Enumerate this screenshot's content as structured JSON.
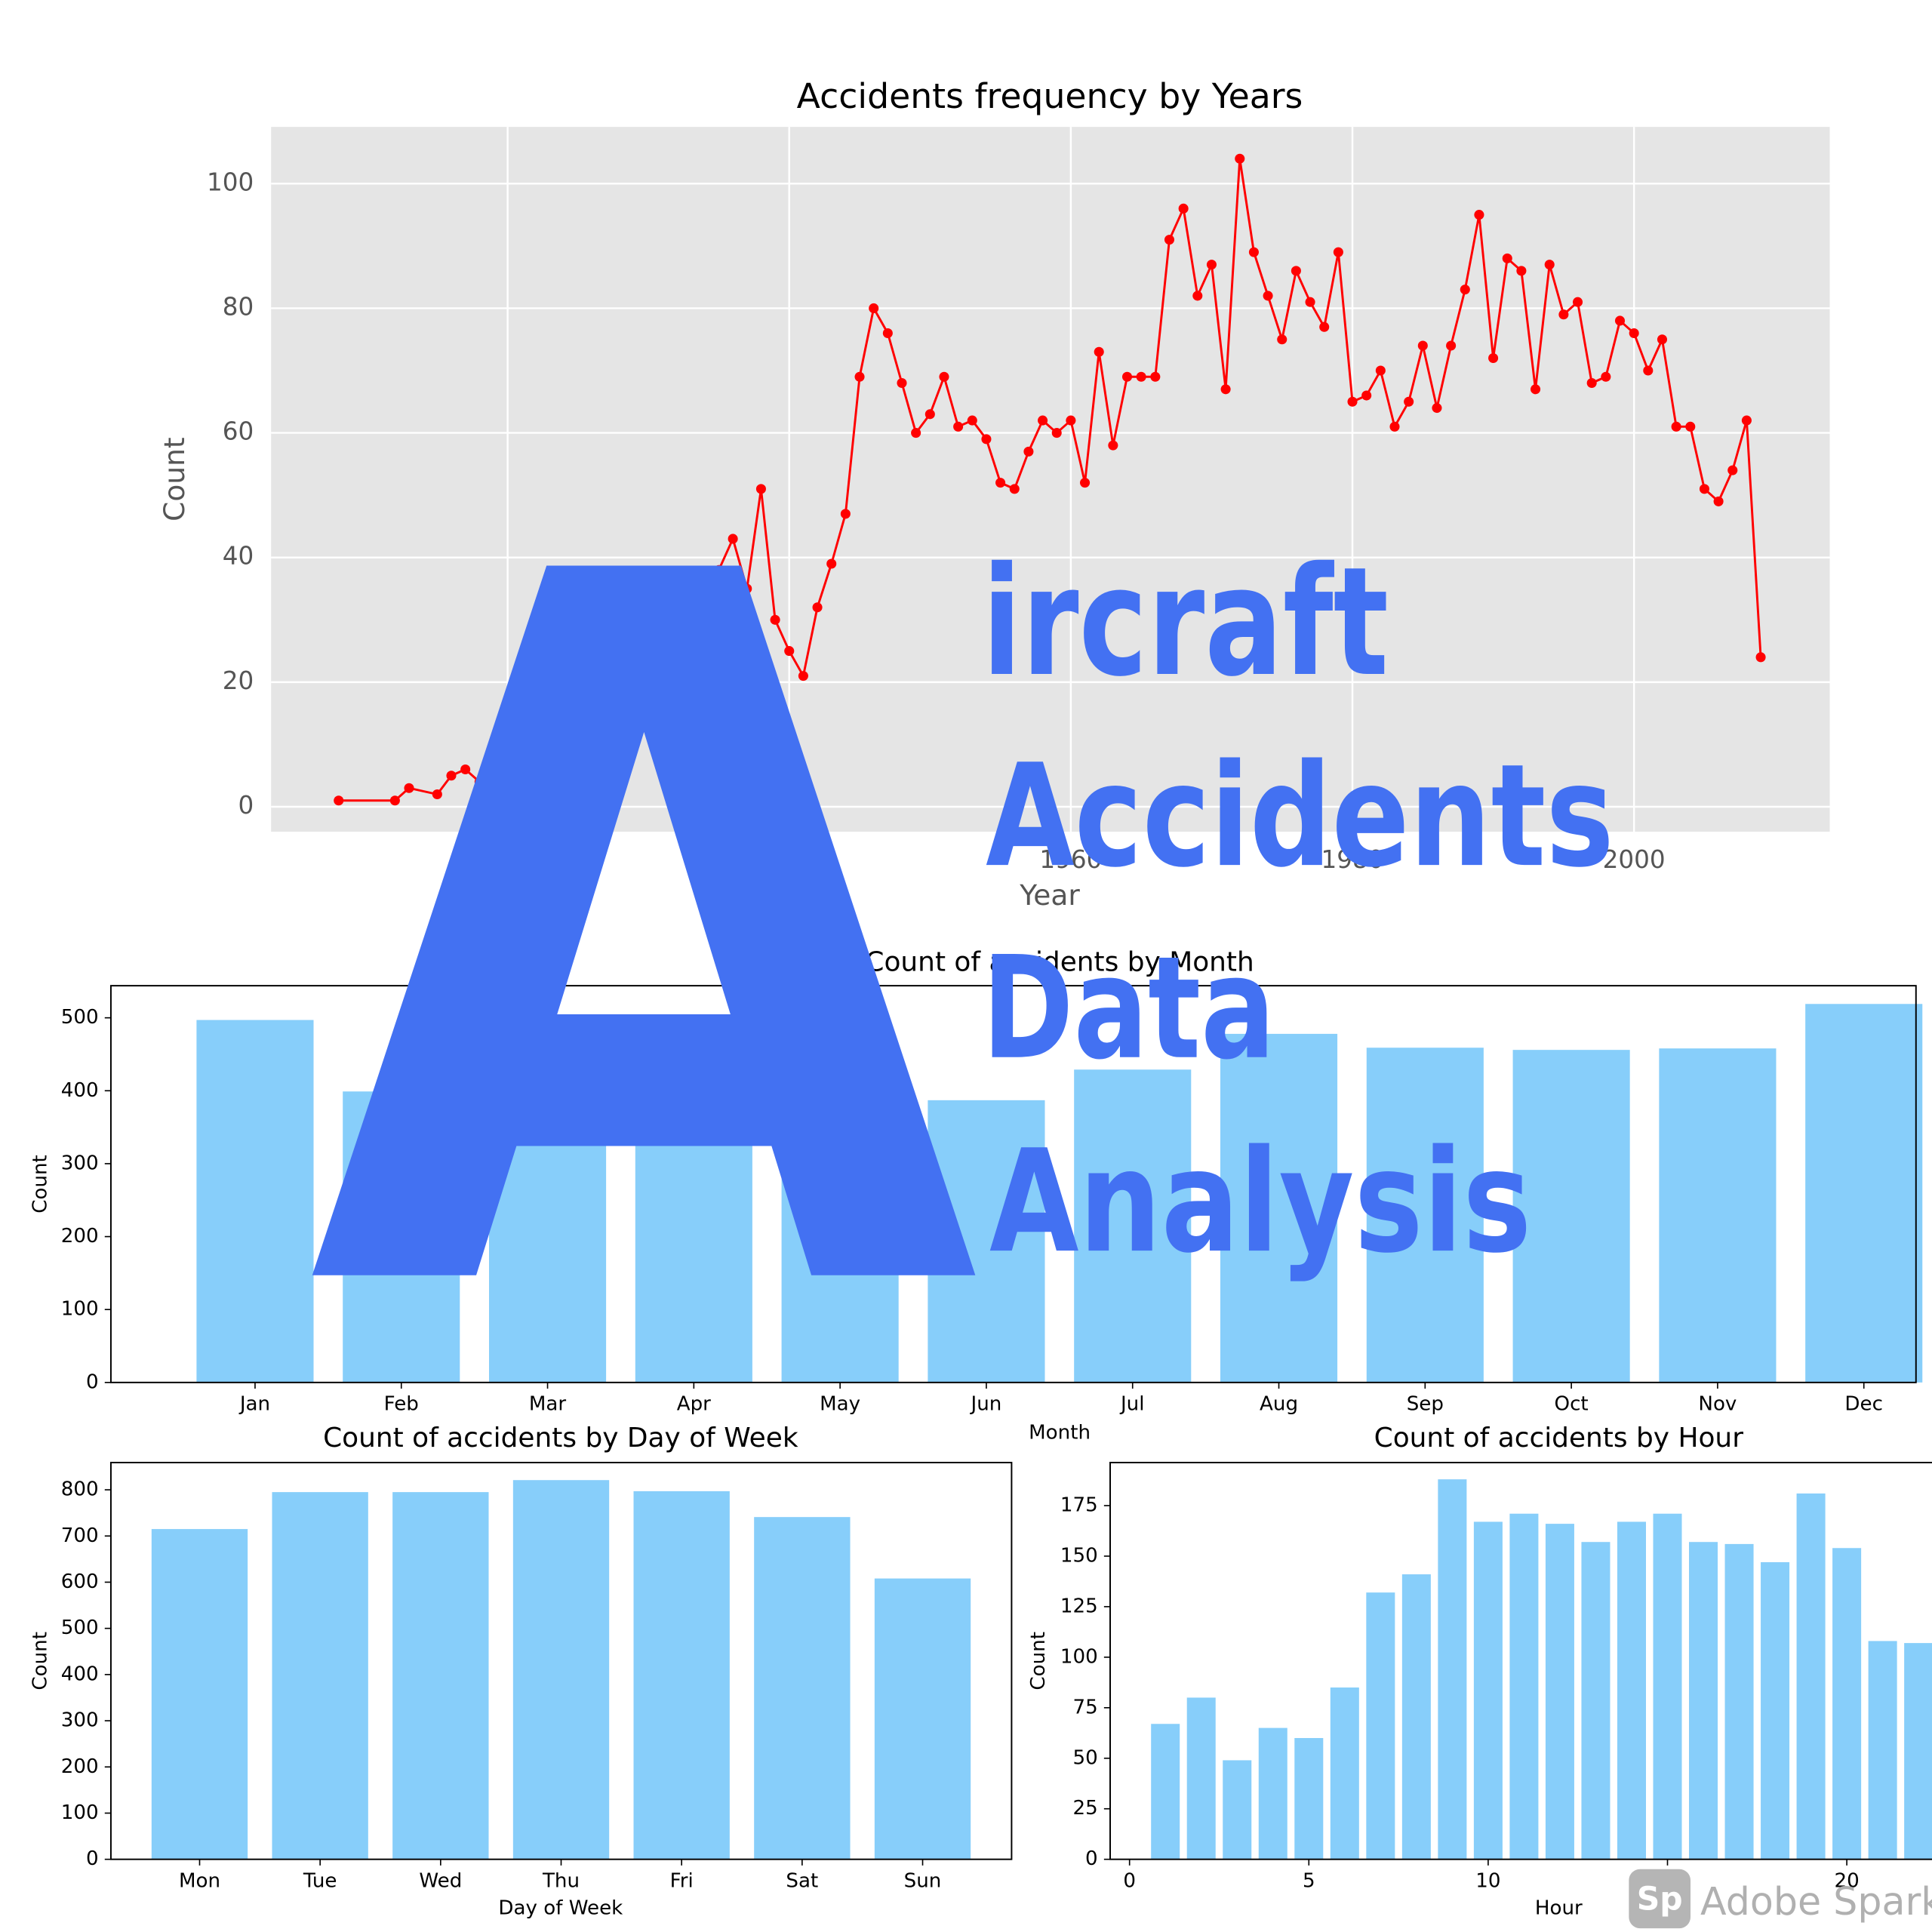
{
  "chart_data": [
    {
      "type": "line",
      "title": "Accidents frequency by Years",
      "x_label": "Year",
      "y_label": "Count",
      "x": [
        1908,
        1912,
        1913,
        1915,
        1916,
        1917,
        1918,
        1919,
        1920,
        1921,
        1922,
        1923,
        1924,
        1925,
        1926,
        1927,
        1928,
        1929,
        1930,
        1931,
        1932,
        1933,
        1934,
        1935,
        1936,
        1937,
        1938,
        1939,
        1940,
        1941,
        1942,
        1943,
        1944,
        1945,
        1946,
        1947,
        1948,
        1949,
        1950,
        1951,
        1952,
        1953,
        1954,
        1955,
        1956,
        1957,
        1958,
        1959,
        1960,
        1961,
        1962,
        1963,
        1964,
        1965,
        1966,
        1967,
        1968,
        1969,
        1970,
        1971,
        1972,
        1973,
        1974,
        1975,
        1976,
        1977,
        1978,
        1979,
        1980,
        1981,
        1982,
        1983,
        1984,
        1985,
        1986,
        1987,
        1988,
        1989,
        1990,
        1991,
        1992,
        1993,
        1994,
        1995,
        1996,
        1997,
        1998,
        1999,
        2000,
        2001,
        2002,
        2003,
        2004,
        2005,
        2006,
        2007,
        2008,
        2009
      ],
      "values": [
        1,
        1,
        3,
        2,
        5,
        6,
        4,
        8,
        10,
        12,
        14,
        15,
        18,
        17,
        20,
        22,
        24,
        25,
        27,
        30,
        28,
        33,
        35,
        38,
        43,
        35,
        51,
        30,
        25,
        21,
        32,
        39,
        47,
        69,
        80,
        76,
        68,
        60,
        63,
        69,
        61,
        62,
        59,
        52,
        51,
        57,
        62,
        60,
        62,
        52,
        73,
        58,
        69,
        69,
        69,
        91,
        96,
        82,
        87,
        67,
        104,
        89,
        82,
        75,
        86,
        81,
        77,
        89,
        65,
        66,
        70,
        61,
        65,
        74,
        64,
        74,
        83,
        95,
        72,
        88,
        86,
        67,
        87,
        79,
        81,
        68,
        69,
        78,
        76,
        70,
        75,
        61,
        61,
        51,
        49,
        54,
        62,
        24
      ],
      "color": "#ff0000",
      "xlim": [
        1903.2,
        2013.9
      ],
      "ylim": [
        -4,
        109.1
      ],
      "xticks": [
        1920,
        1940,
        1960,
        1980,
        2000
      ],
      "yticks": [
        0,
        20,
        40,
        60,
        80,
        100
      ],
      "grid": true
    },
    {
      "type": "bar",
      "title": "Count of accidents by Month",
      "x_label": "Month",
      "y_label": "Count",
      "categories": [
        "Jan",
        "Feb",
        "Mar",
        "Apr",
        "May",
        "Jun",
        "Jul",
        "Aug",
        "Sep",
        "Oct",
        "Nov",
        "Dec"
      ],
      "values": [
        497,
        399,
        400,
        390,
        410,
        387,
        429,
        478,
        459,
        456,
        458,
        519
      ],
      "color": "#87cefa",
      "ylim": [
        0,
        544
      ],
      "yticks": [
        0,
        100,
        200,
        300,
        400,
        500
      ],
      "grid": false
    },
    {
      "type": "bar",
      "title": "Count of accidents by Day of Week",
      "x_label": "Day of Week",
      "y_label": "Count",
      "categories": [
        "Mon",
        "Tue",
        "Wed",
        "Thu",
        "Fri",
        "Sat",
        "Sun"
      ],
      "values": [
        715,
        795,
        795,
        821,
        797,
        741,
        608
      ],
      "color": "#87cefa",
      "ylim": [
        0,
        859
      ],
      "yticks": [
        0,
        100,
        200,
        300,
        400,
        500,
        600,
        700,
        800
      ],
      "grid": false
    },
    {
      "type": "bar",
      "title": "Count of accidents by Hour",
      "x_label": "Hour",
      "y_label": "Count",
      "x": [
        1,
        2,
        3,
        4,
        5,
        6,
        7,
        8,
        9,
        10,
        11,
        12,
        13,
        14,
        15,
        16,
        17,
        18,
        19,
        20,
        21,
        22
      ],
      "values": [
        67,
        80,
        49,
        65,
        60,
        85,
        132,
        141,
        188,
        167,
        171,
        166,
        157,
        167,
        171,
        157,
        156,
        147,
        181,
        154,
        108,
        107
      ],
      "color": "#87cefa",
      "xlim": [
        -0.54,
        24.54
      ],
      "ylim": [
        0,
        196.3
      ],
      "xticks": [
        0,
        5,
        10,
        15,
        20
      ],
      "yticks": [
        0,
        25,
        50,
        75,
        100,
        125,
        150,
        175
      ],
      "grid": false
    }
  ],
  "overlay": {
    "letter": "A",
    "words": [
      "ircraft",
      "Accidents",
      "Data",
      "Analysis"
    ]
  },
  "watermark": {
    "badge": "Sp",
    "text": "Adobe Spark"
  }
}
